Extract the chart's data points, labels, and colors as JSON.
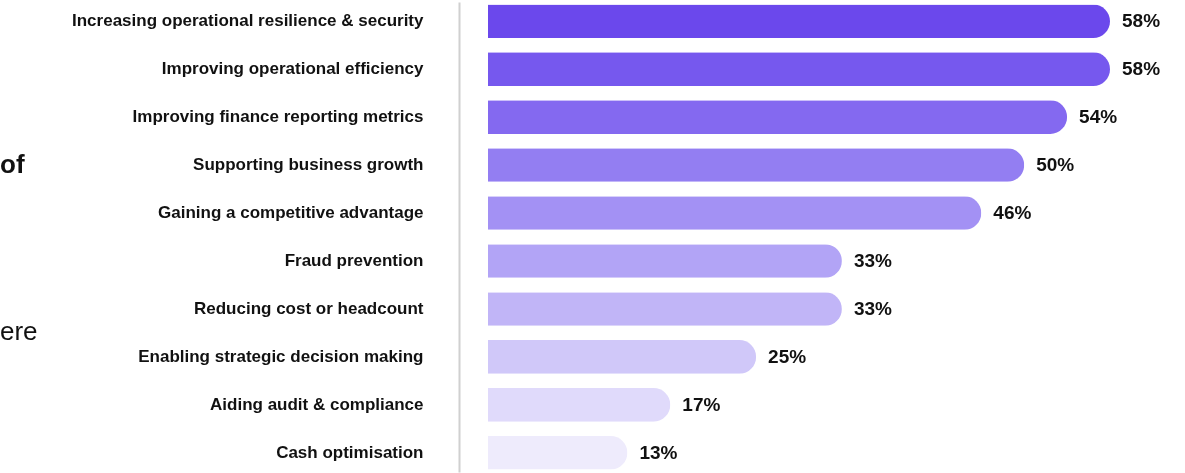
{
  "chart_data": {
    "type": "bar",
    "orientation": "horizontal",
    "grid": false,
    "categories": [
      "Increasing operational resilience & security",
      "Improving operational efficiency",
      "Improving finance reporting metrics",
      "Supporting business growth",
      "Gaining a competitive advantage",
      "Fraud prevention",
      "Reducing cost or headcount",
      "Enabling strategic decision making",
      "Aiding audit & compliance",
      "Cash optimisation"
    ],
    "values": [
      58,
      58,
      54,
      50,
      46,
      33,
      33,
      25,
      17,
      13
    ],
    "value_labels": [
      "58%",
      "58%",
      "54%",
      "50%",
      "46%",
      "33%",
      "33%",
      "25%",
      "17%",
      "13%"
    ],
    "colors": [
      "#6b48ec",
      "#7658ee",
      "#8469f0",
      "#937ef2",
      "#a391f4",
      "#b2a4f6",
      "#c1b5f7",
      "#d0c8f9",
      "#e0dafb",
      "#eeebfc"
    ],
    "annotations": [
      "of",
      "ere"
    ]
  }
}
